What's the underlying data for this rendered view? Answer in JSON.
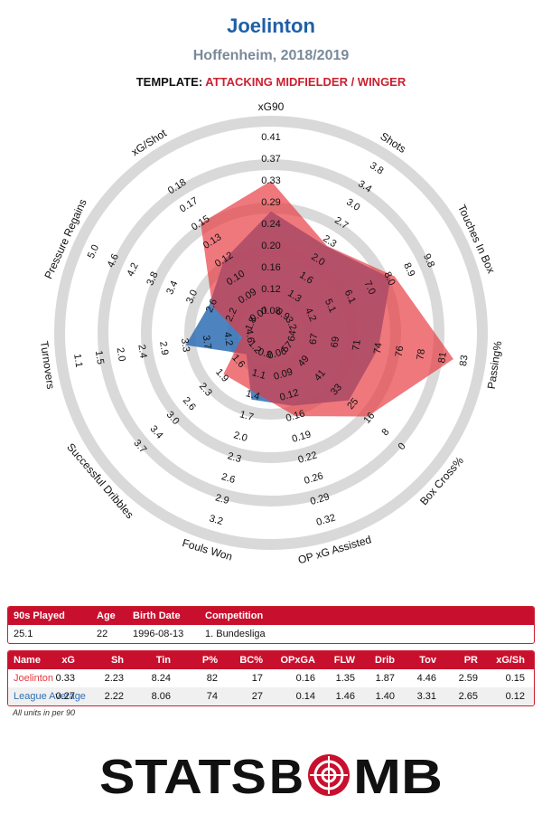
{
  "header": {
    "player": "Joelinton",
    "club_season": "Hoffenheim, 2018/2019",
    "template_label": "TEMPLATE:",
    "template_value": "ATTACKING MIDFIELDER / WINGER"
  },
  "colors": {
    "player": "#e8383f",
    "league": "#2e6fb5",
    "title": "#1f5fa6",
    "accent": "#c8102e"
  },
  "chart_data": {
    "type": "radar",
    "axes": [
      {
        "label": "xG90",
        "ticks": [
          "0.08",
          "0.12",
          "0.16",
          "0.20",
          "0.24",
          "0.29",
          "0.33",
          "0.37",
          "0.41"
        ]
      },
      {
        "label": "Shots",
        "ticks": [
          "0.9",
          "1.3",
          "1.6",
          "2.0",
          "2.3",
          "2.7",
          "3.0",
          "3.4",
          "3.8"
        ]
      },
      {
        "label": "Touches In Box",
        "ticks": [
          "3.2",
          "4.2",
          "5.1",
          "6.1",
          "7.0",
          "8.0",
          "8.9",
          "9.8"
        ]
      },
      {
        "label": "Passing%",
        "ticks": [
          "64",
          "67",
          "69",
          "71",
          "74",
          "76",
          "78",
          "81",
          "83"
        ]
      },
      {
        "label": "Box Cross%",
        "ticks": [
          "57",
          "49",
          "41",
          "33",
          "25",
          "16",
          "8",
          "0"
        ]
      },
      {
        "label": "OP xG Assisted",
        "ticks": [
          "0.06",
          "0.09",
          "0.12",
          "0.16",
          "0.19",
          "0.22",
          "0.26",
          "0.29",
          "0.32"
        ]
      },
      {
        "label": "Fouls Won",
        "ticks": [
          "0.8",
          "1.1",
          "1.4",
          "1.7",
          "2.0",
          "2.3",
          "2.6",
          "2.9",
          "3.2"
        ]
      },
      {
        "label": "Successful Dribbles",
        "ticks": [
          "1.2",
          "1.6",
          "1.9",
          "2.3",
          "2.6",
          "3.0",
          "3.4",
          "3.7"
        ]
      },
      {
        "label": "Turnovers",
        "ticks": [
          "4.6",
          "4.2",
          "3.7",
          "3.3",
          "2.9",
          "2.4",
          "2.0",
          "1.5",
          "1.1"
        ]
      },
      {
        "label": "Pressure Regains",
        "ticks": [
          "1.8",
          "2.2",
          "2.6",
          "3.0",
          "3.4",
          "3.8",
          "4.2",
          "4.6",
          "5.0"
        ]
      },
      {
        "label": "xG/Shot",
        "ticks": [
          "0.07",
          "0.09",
          "0.10",
          "0.12",
          "0.13",
          "0.15",
          "0.17",
          "0.18"
        ]
      }
    ],
    "series": [
      {
        "name": "Joelinton",
        "values": [
          0.33,
          2.23,
          8.24,
          82,
          17,
          0.16,
          1.35,
          1.87,
          4.46,
          2.59,
          0.15
        ]
      },
      {
        "name": "League Average",
        "values": [
          0.27,
          2.22,
          8.06,
          74,
          27,
          0.14,
          1.46,
          1.4,
          3.31,
          2.65,
          0.12
        ]
      }
    ]
  },
  "info_table": {
    "headers": [
      "90s Played",
      "Age",
      "Birth Date",
      "Competition"
    ],
    "row": [
      "25.1",
      "22",
      "1996-08-13",
      "1. Bundesliga"
    ]
  },
  "stats_table": {
    "headers": [
      "Name",
      "xG",
      "Sh",
      "Tin",
      "P%",
      "BC%",
      "OPxGA",
      "FLW",
      "Drib",
      "Tov",
      "PR",
      "xG/Sh"
    ],
    "rows": [
      [
        "Joelinton",
        "0.33",
        "2.23",
        "8.24",
        "82",
        "17",
        "0.16",
        "1.35",
        "1.87",
        "4.46",
        "2.59",
        "0.15"
      ],
      [
        "League Average",
        "0.27",
        "2.22",
        "8.06",
        "74",
        "27",
        "0.14",
        "1.46",
        "1.40",
        "3.31",
        "2.65",
        "0.12"
      ]
    ]
  },
  "note": "All units in per 90",
  "logo": {
    "text_a": "STATS",
    "text_b": "B",
    "text_c": "MB"
  }
}
